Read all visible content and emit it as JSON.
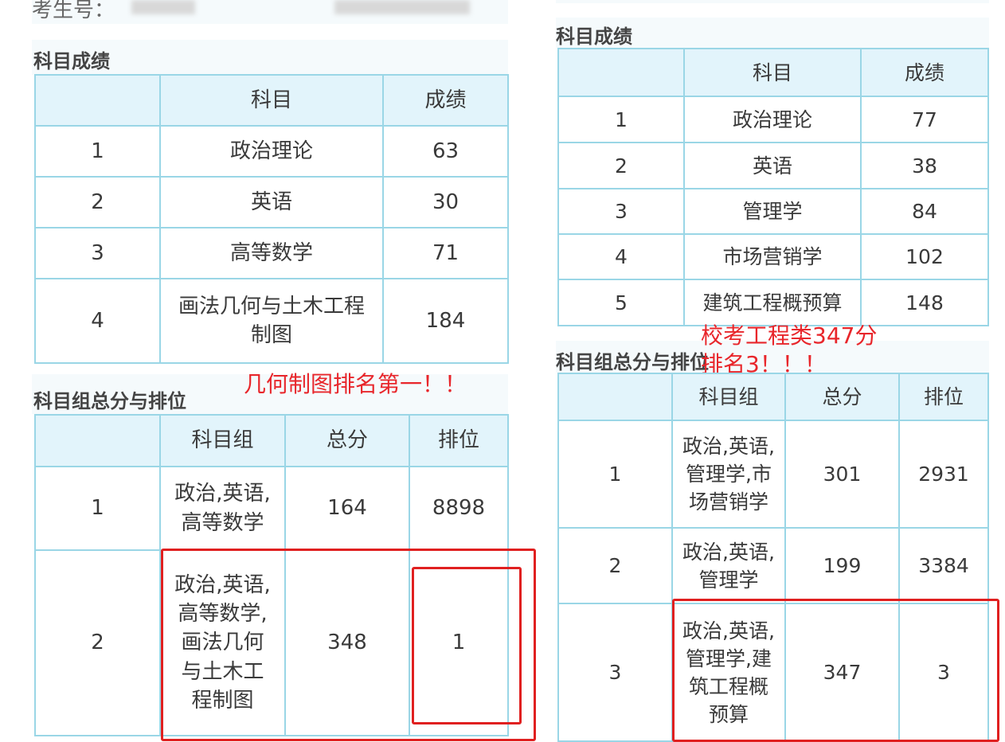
{
  "left": {
    "candidate_label": "考生号：",
    "scores_title": "科目成绩",
    "scores_headers": [
      "",
      "科目",
      "成绩"
    ],
    "scores_rows": [
      [
        "1",
        "政治理论",
        "63"
      ],
      [
        "2",
        "英语",
        "30"
      ],
      [
        "3",
        "高等数学",
        "71"
      ],
      [
        "4",
        "画法几何与土木工程制图",
        "184"
      ]
    ],
    "group_title": "科目组总分与排位",
    "annotation": "几何制图排名第一！！",
    "group_headers": [
      "",
      "科目组",
      "总分",
      "排位"
    ],
    "group_rows": [
      [
        "1",
        "政治,英语,高等数学",
        "164",
        "8898"
      ],
      [
        "2",
        "政治,英语,高等数学,画法几何与土木工程制图",
        "348",
        "1"
      ]
    ]
  },
  "right": {
    "scores_title": "科目成绩",
    "scores_headers": [
      "",
      "科目",
      "成绩"
    ],
    "scores_rows": [
      [
        "1",
        "政治理论",
        "77"
      ],
      [
        "2",
        "英语",
        "38"
      ],
      [
        "3",
        "管理学",
        "84"
      ],
      [
        "4",
        "市场营销学",
        "102"
      ],
      [
        "5",
        "建筑工程概预算",
        "148"
      ]
    ],
    "group_title": "科目组总分与排位",
    "annotation_line1": "校考工程类347分",
    "annotation_line2": "排名3！！！",
    "group_headers": [
      "",
      "科目组",
      "总分",
      "排位"
    ],
    "group_rows": [
      [
        "1",
        "政治,英语,管理学,市场营销学",
        "301",
        "2931"
      ],
      [
        "2",
        "政治,英语,管理学",
        "199",
        "3384"
      ],
      [
        "3",
        "政治,英语,管理学,建筑工程概预算",
        "347",
        "3"
      ]
    ]
  },
  "colors": {
    "annotation": "#e8262b",
    "header_bg": "#e2f4fb",
    "border": "#9ad6e6"
  }
}
